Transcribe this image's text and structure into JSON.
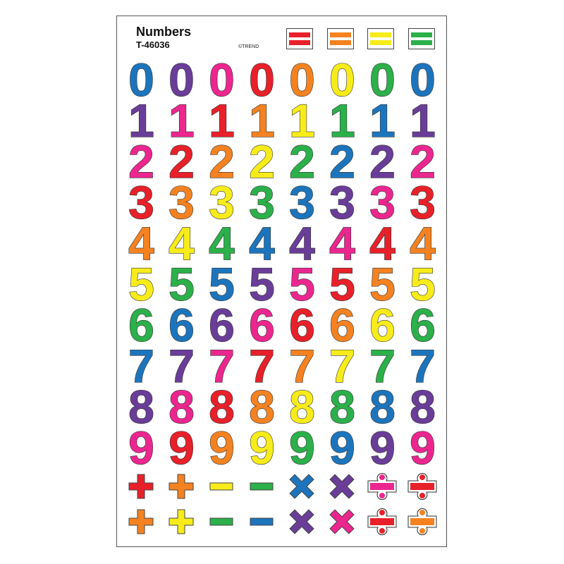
{
  "header": {
    "title": "Numbers",
    "code": "T-46036",
    "copyright": "©TREND",
    "swatches": [
      "#e8202a",
      "#f48221",
      "#f7ec1a",
      "#2bb04a"
    ]
  },
  "palette": {
    "blue": "#1c75bc",
    "purple": "#6a3d98",
    "pink": "#ec268f",
    "red": "#e8202a",
    "orange": "#f48221",
    "yellow": "#f7ec1a",
    "green": "#2bb04a"
  },
  "digit_rows": [
    {
      "digit": "0",
      "colors": [
        "blue",
        "purple",
        "pink",
        "red",
        "orange",
        "yellow",
        "green",
        "blue"
      ]
    },
    {
      "digit": "1",
      "colors": [
        "purple",
        "pink",
        "red",
        "orange",
        "yellow",
        "green",
        "blue",
        "purple"
      ]
    },
    {
      "digit": "2",
      "colors": [
        "pink",
        "red",
        "orange",
        "yellow",
        "green",
        "blue",
        "purple",
        "pink"
      ]
    },
    {
      "digit": "3",
      "colors": [
        "red",
        "orange",
        "yellow",
        "green",
        "blue",
        "purple",
        "pink",
        "red"
      ]
    },
    {
      "digit": "4",
      "colors": [
        "orange",
        "yellow",
        "green",
        "blue",
        "purple",
        "pink",
        "red",
        "orange"
      ]
    },
    {
      "digit": "5",
      "colors": [
        "yellow",
        "green",
        "blue",
        "purple",
        "pink",
        "red",
        "orange",
        "yellow"
      ]
    },
    {
      "digit": "6",
      "colors": [
        "green",
        "blue",
        "purple",
        "pink",
        "red",
        "orange",
        "yellow",
        "green"
      ]
    },
    {
      "digit": "7",
      "colors": [
        "blue",
        "purple",
        "pink",
        "red",
        "orange",
        "yellow",
        "green",
        "blue"
      ]
    },
    {
      "digit": "8",
      "colors": [
        "purple",
        "pink",
        "red",
        "orange",
        "yellow",
        "green",
        "blue",
        "purple"
      ]
    },
    {
      "digit": "9",
      "colors": [
        "pink",
        "red",
        "orange",
        "yellow",
        "green",
        "blue",
        "purple",
        "pink"
      ]
    }
  ],
  "symbol_rows": [
    [
      {
        "symbol": "plus",
        "color": "red"
      },
      {
        "symbol": "plus",
        "color": "orange"
      },
      {
        "symbol": "minus",
        "color": "yellow"
      },
      {
        "symbol": "minus",
        "color": "green"
      },
      {
        "symbol": "times",
        "color": "blue"
      },
      {
        "symbol": "times",
        "color": "purple"
      },
      {
        "symbol": "divide",
        "color": "pink",
        "dots": "pink"
      },
      {
        "symbol": "divide",
        "color": "red",
        "dots": "red"
      }
    ],
    [
      {
        "symbol": "plus",
        "color": "orange"
      },
      {
        "symbol": "plus",
        "color": "yellow"
      },
      {
        "symbol": "minus",
        "color": "green"
      },
      {
        "symbol": "minus",
        "color": "blue"
      },
      {
        "symbol": "times",
        "color": "purple"
      },
      {
        "symbol": "times",
        "color": "pink"
      },
      {
        "symbol": "divide",
        "color": "red",
        "dots": "red"
      },
      {
        "symbol": "divide",
        "color": "orange",
        "dots": "orange"
      }
    ]
  ]
}
